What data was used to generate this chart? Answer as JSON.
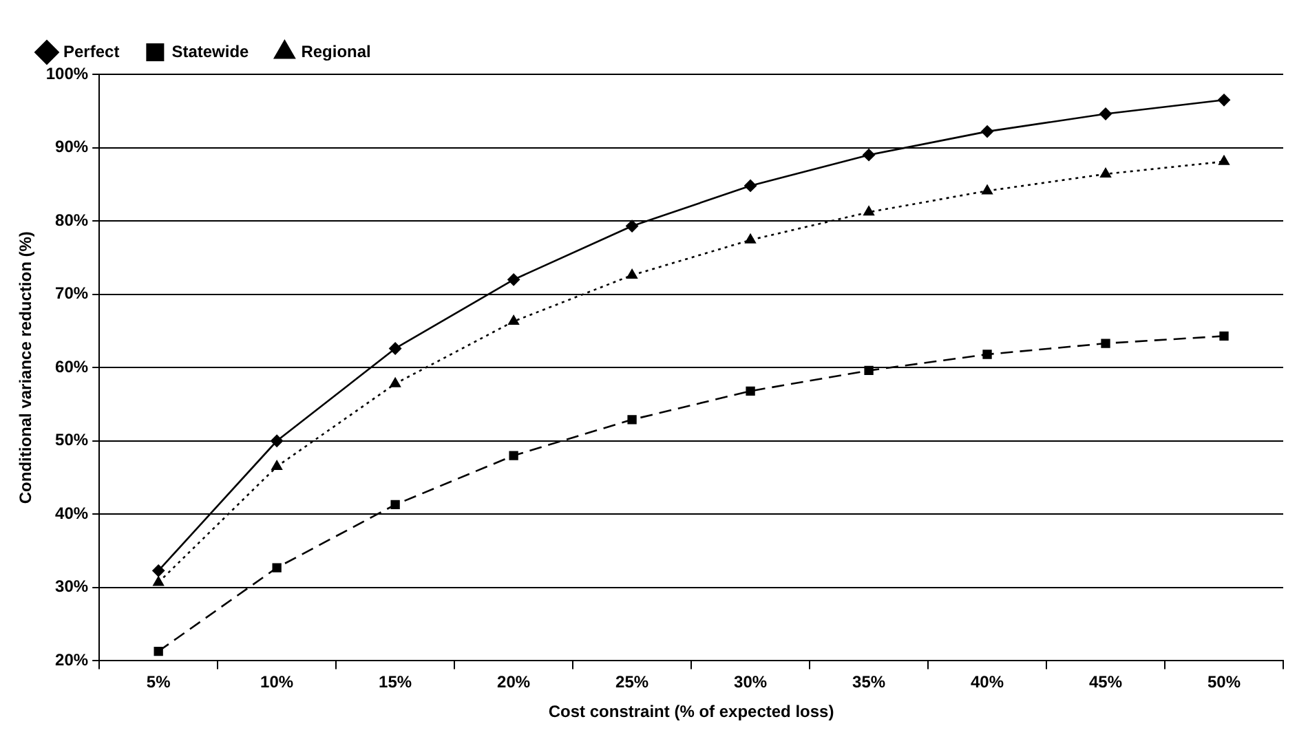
{
  "chart_data": {
    "type": "line",
    "xlabel": "Cost constraint (% of expected loss)",
    "ylabel": "Conditional variance reduction (%)",
    "categories": [
      "5%",
      "10%",
      "15%",
      "20%",
      "25%",
      "30%",
      "35%",
      "40%",
      "45%",
      "50%"
    ],
    "series": [
      {
        "name": "Perfect",
        "color": "#000000",
        "marker": "diamond",
        "line_style": "solid",
        "values": [
          32.3,
          50.0,
          62.6,
          72.0,
          79.3,
          84.8,
          89.0,
          92.2,
          94.6,
          96.5
        ]
      },
      {
        "name": "Statewide",
        "color": "#000000",
        "marker": "square",
        "line_style": "dashed",
        "values": [
          21.3,
          32.7,
          41.3,
          48.0,
          52.9,
          56.8,
          59.6,
          61.8,
          63.3,
          64.3
        ]
      },
      {
        "name": "Regional",
        "color": "#000000",
        "marker": "triangle",
        "line_style": "dotted",
        "values": [
          30.7,
          46.5,
          57.8,
          66.3,
          72.6,
          77.4,
          81.2,
          84.1,
          86.4,
          88.1
        ]
      }
    ],
    "ylim": [
      20,
      100
    ],
    "yticks": [
      {
        "value": 20,
        "label": "20%"
      },
      {
        "value": 30,
        "label": "30%"
      },
      {
        "value": 40,
        "label": "40%"
      },
      {
        "value": 50,
        "label": "50%"
      },
      {
        "value": 60,
        "label": "60%"
      },
      {
        "value": 70,
        "label": "70%"
      },
      {
        "value": 80,
        "label": "80%"
      },
      {
        "value": 90,
        "label": "90%"
      },
      {
        "value": 100,
        "label": "100%"
      }
    ],
    "grid": "y",
    "legend": "top left"
  }
}
